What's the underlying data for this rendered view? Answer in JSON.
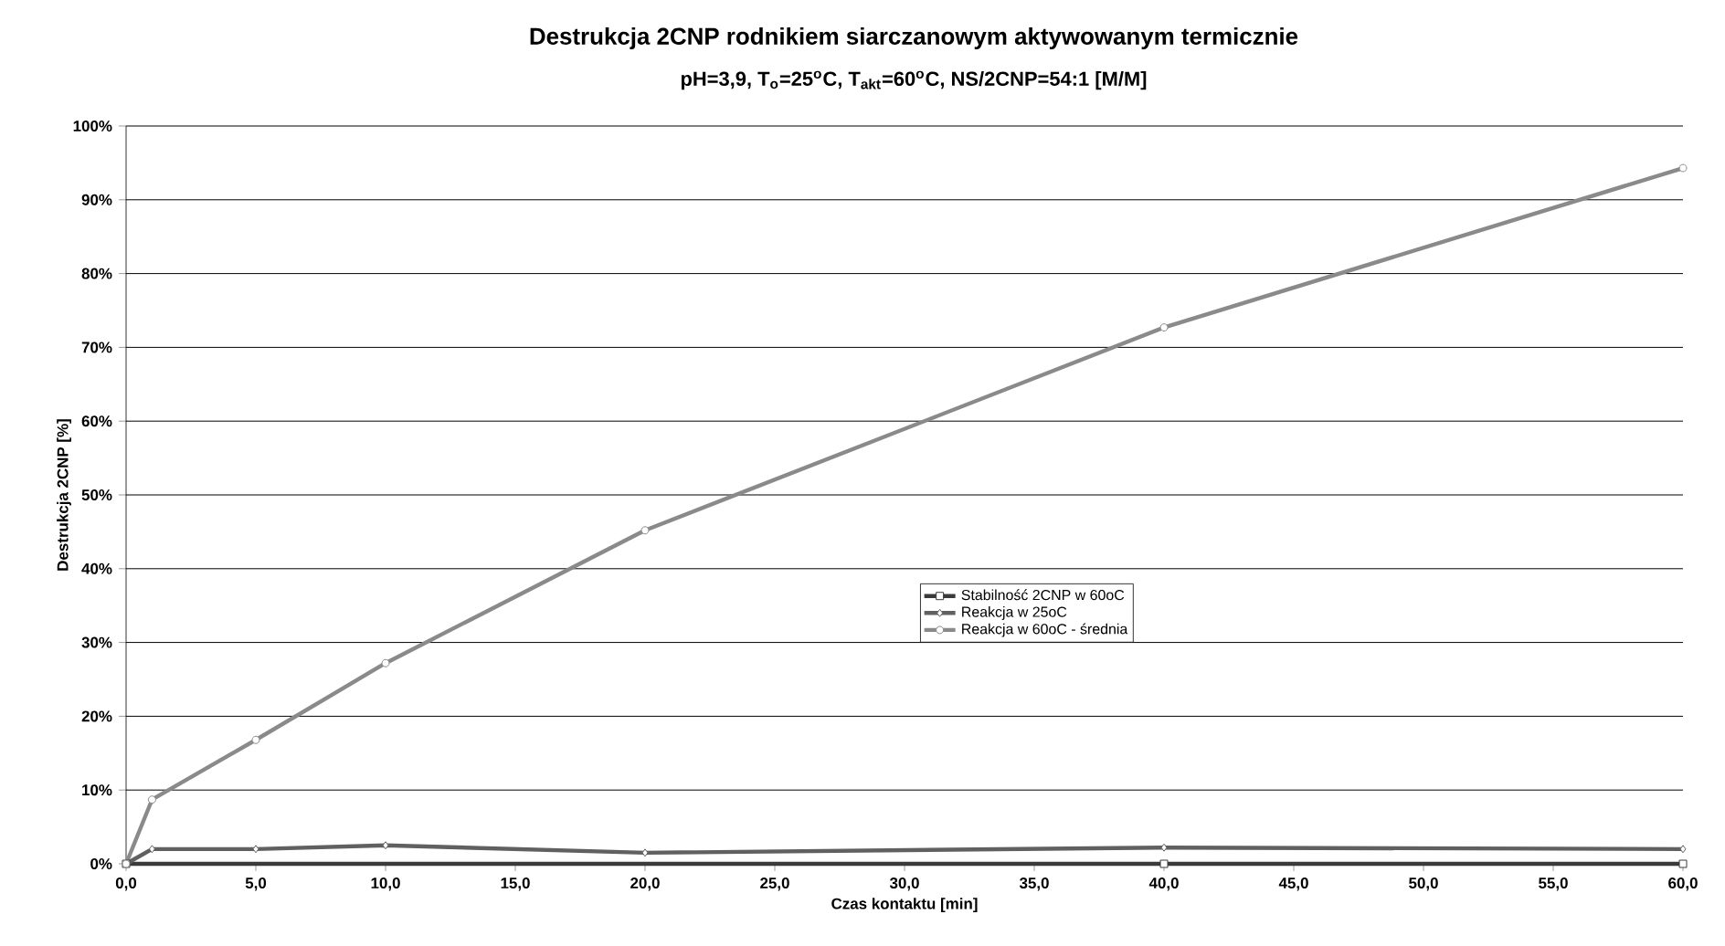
{
  "chart_data": {
    "type": "line",
    "title": "Destrukcja 2CNP rodnikiem siarczanowym aktywowanym termicznie",
    "subtitle": "pH=3,9, T$_{o}$=25$^{o}$C, T$_{akt}$=60$^{o}$C, NS/2CNP=54:1 [M/M]",
    "xlabel": "Czas kontaktu [min]",
    "ylabel": "Destrukcja 2CNP [%]",
    "series": [
      {
        "name": "Stabilność 2CNP w 60oC",
        "color": "#3a3a3a",
        "marker": "square",
        "x": [
          0,
          40,
          60
        ],
        "values": [
          0,
          0,
          0
        ]
      },
      {
        "name": "Reakcja w 25oC",
        "color": "#606060",
        "marker": "diamond",
        "x": [
          0,
          1,
          5,
          10,
          20,
          40,
          60
        ],
        "values": [
          0,
          2.0,
          2.0,
          2.5,
          1.5,
          2.2,
          2.0
        ]
      },
      {
        "name": "Reakcja w 60oC - średnia",
        "color": "#8a8a8a",
        "marker": "circle",
        "x": [
          0,
          1,
          5,
          10,
          20,
          40,
          60
        ],
        "values": [
          0,
          8.7,
          16.8,
          27.2,
          45.2,
          72.7,
          94.3
        ]
      }
    ],
    "xlim": [
      0,
      60
    ],
    "xticks": [
      {
        "value": 0,
        "label": "0,0"
      },
      {
        "value": 5,
        "label": "5,0"
      },
      {
        "value": 10,
        "label": "10,0"
      },
      {
        "value": 15,
        "label": "15,0"
      },
      {
        "value": 20,
        "label": "20,0"
      },
      {
        "value": 25,
        "label": "25,0"
      },
      {
        "value": 30,
        "label": "30,0"
      },
      {
        "value": 35,
        "label": "35,0"
      },
      {
        "value": 40,
        "label": "40,0"
      },
      {
        "value": 45,
        "label": "45,0"
      },
      {
        "value": 50,
        "label": "50,0"
      },
      {
        "value": 55,
        "label": "55,0"
      },
      {
        "value": 60,
        "label": "60,0"
      }
    ],
    "ylim": [
      0,
      100
    ],
    "yticks": [
      {
        "value": 0,
        "label": "0%"
      },
      {
        "value": 10,
        "label": "10%"
      },
      {
        "value": 20,
        "label": "20%"
      },
      {
        "value": 30,
        "label": "30%"
      },
      {
        "value": 40,
        "label": "40%"
      },
      {
        "value": 50,
        "label": "50%"
      },
      {
        "value": 60,
        "label": "60%"
      },
      {
        "value": 70,
        "label": "70%"
      },
      {
        "value": 80,
        "label": "80%"
      },
      {
        "value": 90,
        "label": "90%"
      },
      {
        "value": 100,
        "label": "100%"
      }
    ],
    "grid": "y",
    "legend": "center",
    "line_style": "solid"
  }
}
